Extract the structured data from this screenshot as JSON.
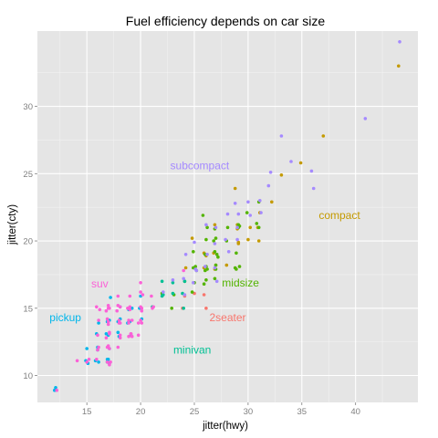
{
  "chart_data": {
    "type": "scatter",
    "title": "Fuel efficiency depends on car size",
    "xlabel": "jitter(hwy)",
    "ylabel": "jitter(cty)",
    "xlim": [
      10.4,
      45.8
    ],
    "ylim": [
      8.0,
      35.6
    ],
    "xticks": [
      15,
      20,
      25,
      30,
      35,
      40
    ],
    "yticks": [
      10,
      15,
      20,
      25,
      30
    ],
    "xtick_labels": [
      "15",
      "20",
      "25",
      "30",
      "35",
      "40"
    ],
    "ytick_labels": [
      "10",
      "15",
      "20",
      "25",
      "30"
    ],
    "grid": true,
    "legend": "none",
    "panel_background": "#e5e5e5",
    "grid_color": "#ffffff",
    "series": [
      {
        "name": "2seater",
        "color": "#f8766d",
        "label_pos": [
          28.1,
          14.3
        ],
        "points": [
          [
            23.9,
            15.0
          ],
          [
            25.0,
            16.1
          ],
          [
            26.1,
            15.0
          ],
          [
            25.9,
            16.0
          ],
          [
            24.1,
            15.9
          ]
        ]
      },
      {
        "name": "compact",
        "color": "#c49a00",
        "label_pos": [
          38.5,
          21.9
        ],
        "points": [
          [
            44.0,
            33.0
          ],
          [
            37.0,
            27.8
          ],
          [
            34.9,
            25.8
          ],
          [
            30.2,
            21.0
          ],
          [
            29.0,
            21.2
          ],
          [
            29.1,
            19.8
          ],
          [
            28.8,
            23.9
          ],
          [
            26.9,
            21.2
          ],
          [
            26.1,
            18.9
          ],
          [
            24.8,
            20.2
          ],
          [
            25.9,
            18.0
          ],
          [
            26.8,
            19.1
          ],
          [
            31.1,
            22.1
          ],
          [
            30.9,
            21.0
          ],
          [
            32.2,
            22.9
          ],
          [
            33.1,
            24.9
          ],
          [
            29.0,
            20.9
          ],
          [
            27.0,
            18.2
          ],
          [
            30.0,
            20.1
          ],
          [
            29.1,
            19.9
          ],
          [
            31.0,
            20.0
          ],
          [
            26.9,
            17.9
          ],
          [
            25.9,
            19.1
          ],
          [
            28.0,
            18.2
          ],
          [
            24.2,
            18.0
          ]
        ]
      },
      {
        "name": "midsize",
        "color": "#53b400",
        "label_pos": [
          29.3,
          16.9
        ],
        "points": [
          [
            28.8,
            18.0
          ],
          [
            29.2,
            18.1
          ],
          [
            27.0,
            18.2
          ],
          [
            26.2,
            17.9
          ],
          [
            25.1,
            18.1
          ],
          [
            26.9,
            19.2
          ],
          [
            26.0,
            19.0
          ],
          [
            24.9,
            18.0
          ],
          [
            26.1,
            17.1
          ],
          [
            25.0,
            16.9
          ],
          [
            27.0,
            20.2
          ],
          [
            26.8,
            20.0
          ],
          [
            26.2,
            21.0
          ],
          [
            28.1,
            21.0
          ],
          [
            29.1,
            21.2
          ],
          [
            31.0,
            21.0
          ],
          [
            30.8,
            21.3
          ],
          [
            31.0,
            22.9
          ],
          [
            29.2,
            21.1
          ],
          [
            27.1,
            19.0
          ],
          [
            24.9,
            19.2
          ],
          [
            22.0,
            16.1
          ],
          [
            23.1,
            16.0
          ],
          [
            22.9,
            15.0
          ],
          [
            26.9,
            17.2
          ],
          [
            25.9,
            16.8
          ],
          [
            24.8,
            16.2
          ],
          [
            28.9,
            17.9
          ],
          [
            26.0,
            17.8
          ],
          [
            27.2,
            18.8
          ],
          [
            24.1,
            17.0
          ],
          [
            25.2,
            17.8
          ],
          [
            26.1,
            20.1
          ],
          [
            28.0,
            20.0
          ],
          [
            28.9,
            19.1
          ],
          [
            26.1,
            18.1
          ],
          [
            27.0,
            17.9
          ],
          [
            25.8,
            21.9
          ],
          [
            26.9,
            20.9
          ],
          [
            29.9,
            22.1
          ],
          [
            29.1,
            21.0
          ]
        ]
      },
      {
        "name": "minivan",
        "color": "#00c094",
        "label_pos": [
          24.8,
          11.9
        ],
        "points": [
          [
            22.1,
            16.0
          ],
          [
            23.9,
            16.1
          ],
          [
            21.1,
            15.1
          ],
          [
            23.0,
            16.1
          ],
          [
            24.0,
            15.0
          ],
          [
            22.0,
            17.0
          ],
          [
            24.1,
            17.0
          ],
          [
            23.0,
            16.9
          ],
          [
            22.0,
            15.9
          ],
          [
            16.9,
            11.0
          ]
        ]
      },
      {
        "name": "pickup",
        "color": "#00b6eb",
        "label_pos": [
          13.0,
          14.3
        ],
        "points": [
          [
            12.1,
            9.1
          ],
          [
            12.0,
            8.9
          ],
          [
            14.9,
            11.1
          ],
          [
            15.1,
            10.9
          ],
          [
            16.0,
            11.9
          ],
          [
            16.9,
            11.2
          ],
          [
            17.0,
            13.0
          ],
          [
            16.1,
            13.9
          ],
          [
            17.1,
            14.1
          ],
          [
            18.1,
            15.1
          ],
          [
            17.9,
            14.0
          ],
          [
            18.8,
            13.9
          ],
          [
            19.2,
            15.0
          ],
          [
            20.1,
            14.2
          ],
          [
            17.1,
            12.0
          ],
          [
            16.0,
            12.1
          ],
          [
            15.9,
            13.1
          ],
          [
            19.9,
            15.0
          ],
          [
            17.2,
            15.8
          ],
          [
            18.9,
            14.9
          ],
          [
            16.8,
            13.1
          ],
          [
            17.9,
            13.2
          ],
          [
            16.1,
            11.0
          ],
          [
            15.0,
            12.0
          ],
          [
            17.0,
            11.2
          ],
          [
            19.0,
            14.0
          ],
          [
            18.0,
            12.9
          ],
          [
            15.8,
            11.1
          ],
          [
            17.1,
            10.9
          ],
          [
            20.0,
            15.9
          ],
          [
            18.1,
            14.2
          ],
          [
            19.1,
            13.0
          ],
          [
            16.9,
            14.0
          ]
        ]
      },
      {
        "name": "subcompact",
        "color": "#a58aff",
        "label_pos": [
          25.5,
          25.6
        ],
        "points": [
          [
            44.1,
            34.8
          ],
          [
            40.9,
            29.1
          ],
          [
            33.1,
            27.8
          ],
          [
            34.0,
            25.9
          ],
          [
            35.9,
            25.2
          ],
          [
            36.1,
            23.9
          ],
          [
            32.1,
            25.1
          ],
          [
            31.9,
            24.1
          ],
          [
            30.0,
            22.9
          ],
          [
            31.2,
            22.1
          ],
          [
            29.0,
            21.0
          ],
          [
            28.8,
            22.8
          ],
          [
            28.1,
            22.0
          ],
          [
            27.0,
            21.0
          ],
          [
            26.1,
            21.2
          ],
          [
            25.0,
            19.9
          ],
          [
            24.2,
            19.0
          ],
          [
            25.2,
            17.8
          ],
          [
            24.0,
            17.2
          ],
          [
            23.0,
            17.1
          ],
          [
            22.1,
            16.2
          ],
          [
            24.1,
            16.0
          ],
          [
            26.9,
            18.0
          ],
          [
            27.9,
            20.1
          ],
          [
            26.2,
            19.0
          ],
          [
            25.1,
            17.9
          ],
          [
            24.9,
            16.9
          ],
          [
            29.0,
            20.1
          ],
          [
            28.2,
            19.2
          ],
          [
            26.0,
            18.1
          ],
          [
            27.1,
            17.0
          ],
          [
            26.9,
            19.8
          ],
          [
            29.1,
            22.0
          ],
          [
            30.2,
            21.9
          ],
          [
            31.1,
            23.0
          ]
        ]
      },
      {
        "name": "suv",
        "color": "#fb61d7",
        "label_pos": [
          16.2,
          16.8
        ],
        "points": [
          [
            12.2,
            8.9
          ],
          [
            14.1,
            11.1
          ],
          [
            15.0,
            11.0
          ],
          [
            15.2,
            11.2
          ],
          [
            16.9,
            11.0
          ],
          [
            17.2,
            11.0
          ],
          [
            17.0,
            12.2
          ],
          [
            17.9,
            12.1
          ],
          [
            18.1,
            13.0
          ],
          [
            19.1,
            13.1
          ],
          [
            17.0,
            14.0
          ],
          [
            16.9,
            14.2
          ],
          [
            17.1,
            15.0
          ],
          [
            18.1,
            15.1
          ],
          [
            19.0,
            14.9
          ],
          [
            19.2,
            14.1
          ],
          [
            20.1,
            15.0
          ],
          [
            20.0,
            16.2
          ],
          [
            19.8,
            13.9
          ],
          [
            18.9,
            12.9
          ],
          [
            16.8,
            12.8
          ],
          [
            16.1,
            12.1
          ],
          [
            16.0,
            11.9
          ],
          [
            17.1,
            10.8
          ],
          [
            15.9,
            11.2
          ],
          [
            17.1,
            13.2
          ],
          [
            18.0,
            13.9
          ],
          [
            19.0,
            15.9
          ],
          [
            20.1,
            14.8
          ],
          [
            21.2,
            15.1
          ],
          [
            20.0,
            16.9
          ],
          [
            18.8,
            15.0
          ],
          [
            17.0,
            15.2
          ],
          [
            18.1,
            13.9
          ],
          [
            19.1,
            13.1
          ],
          [
            17.1,
            12.0
          ],
          [
            16.1,
            14.1
          ],
          [
            15.9,
            15.1
          ],
          [
            20.0,
            14.1
          ],
          [
            17.8,
            14.8
          ],
          [
            21.0,
            15.9
          ],
          [
            20.2,
            16.0
          ],
          [
            18.9,
            14.1
          ],
          [
            19.8,
            13.0
          ],
          [
            16.8,
            14.8
          ],
          [
            17.9,
            15.2
          ],
          [
            18.1,
            12.8
          ],
          [
            17.0,
            13.8
          ],
          [
            16.9,
            12.1
          ],
          [
            19.0,
            15.1
          ],
          [
            18.0,
            14.1
          ],
          [
            17.1,
            13.1
          ],
          [
            20.1,
            13.9
          ],
          [
            16.0,
            13.0
          ],
          [
            17.0,
            15.0
          ],
          [
            19.2,
            12.9
          ],
          [
            20.0,
            15.1
          ],
          [
            18.9,
            13.9
          ],
          [
            17.9,
            15.9
          ],
          [
            16.2,
            14.9
          ],
          [
            21.1,
            15.0
          ],
          [
            24.0,
            17.8
          ]
        ]
      }
    ]
  }
}
